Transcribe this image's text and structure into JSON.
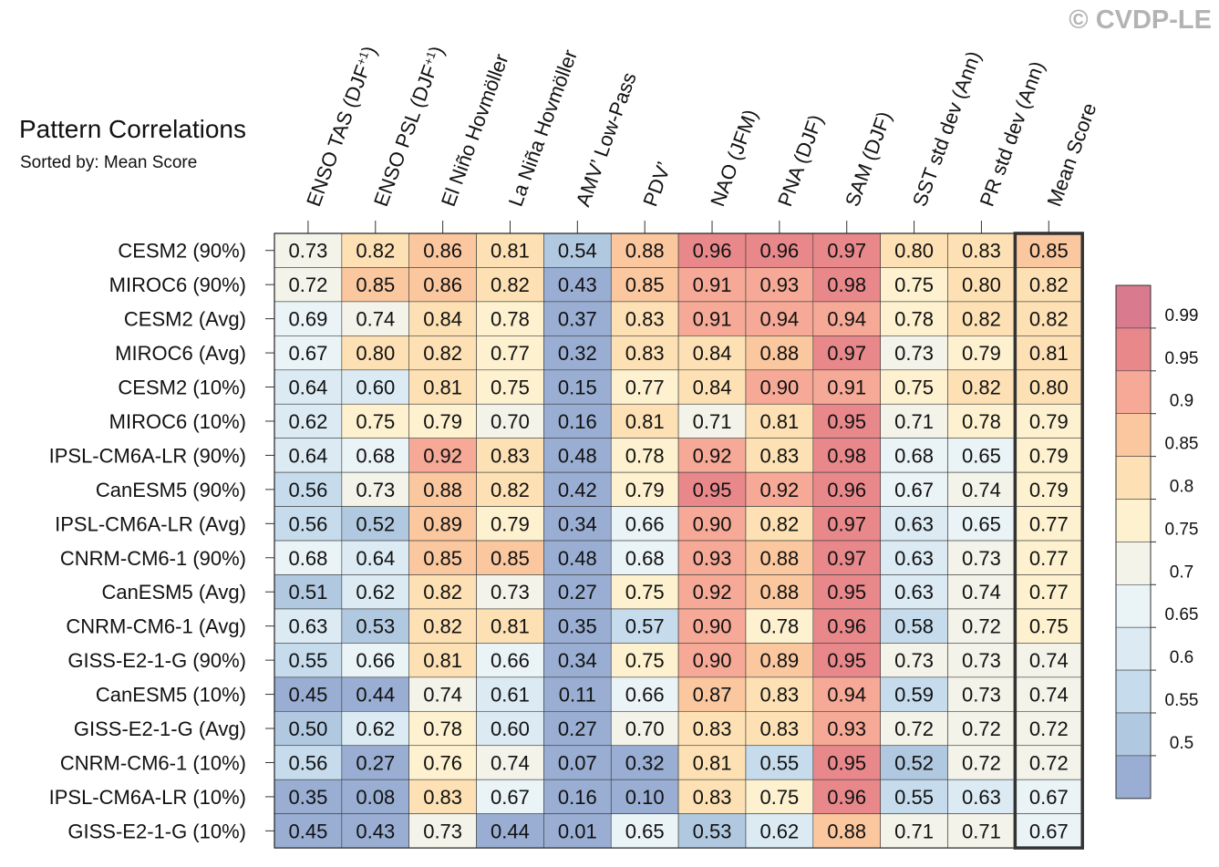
{
  "copyright": "© CVDP-LE",
  "chart_data": {
    "type": "heatmap",
    "title": "Pattern Correlations",
    "subtitle": "Sorted by: Mean Score",
    "columns": [
      "ENSO TAS (DJF+1)",
      "ENSO PSL (DJF+1)",
      "El Niño Hovmöller",
      "La Niña Hovmöller",
      "AMV’ Low-Pass",
      "PDV’",
      "NAO (JFM)",
      "PNA (DJF)",
      "SAM (DJF)",
      "SST std dev (Ann)",
      "PR std dev (Ann)",
      "Mean Score"
    ],
    "highlighted_column": "Mean Score",
    "rows": [
      "CESM2 (90%)",
      "MIROC6 (90%)",
      "CESM2 (Avg)",
      "MIROC6 (Avg)",
      "CESM2 (10%)",
      "MIROC6 (10%)",
      "IPSL-CM6A-LR (90%)",
      "CanESM5 (90%)",
      "IPSL-CM6A-LR (Avg)",
      "CNRM-CM6-1 (90%)",
      "CanESM5 (Avg)",
      "CNRM-CM6-1 (Avg)",
      "GISS-E2-1-G (90%)",
      "CanESM5 (10%)",
      "GISS-E2-1-G (Avg)",
      "CNRM-CM6-1 (10%)",
      "IPSL-CM6A-LR (10%)",
      "GISS-E2-1-G (10%)"
    ],
    "values": [
      [
        "0.73",
        "0.82",
        "0.86",
        "0.81",
        "0.54",
        "0.88",
        "0.96",
        "0.96",
        "0.97",
        "0.80",
        "0.83",
        "0.85"
      ],
      [
        "0.72",
        "0.85",
        "0.86",
        "0.82",
        "0.43",
        "0.85",
        "0.91",
        "0.93",
        "0.98",
        "0.75",
        "0.80",
        "0.82"
      ],
      [
        "0.69",
        "0.74",
        "0.84",
        "0.78",
        "0.37",
        "0.83",
        "0.91",
        "0.94",
        "0.94",
        "0.78",
        "0.82",
        "0.82"
      ],
      [
        "0.67",
        "0.80",
        "0.82",
        "0.77",
        "0.32",
        "0.83",
        "0.84",
        "0.88",
        "0.97",
        "0.73",
        "0.79",
        "0.81"
      ],
      [
        "0.64",
        "0.60",
        "0.81",
        "0.75",
        "0.15",
        "0.77",
        "0.84",
        "0.90",
        "0.91",
        "0.75",
        "0.82",
        "0.80"
      ],
      [
        "0.62",
        "0.75",
        "0.79",
        "0.70",
        "0.16",
        "0.81",
        "0.71",
        "0.81",
        "0.95",
        "0.71",
        "0.78",
        "0.79"
      ],
      [
        "0.64",
        "0.68",
        "0.92",
        "0.83",
        "0.48",
        "0.78",
        "0.92",
        "0.83",
        "0.98",
        "0.68",
        "0.65",
        "0.79"
      ],
      [
        "0.56",
        "0.73",
        "0.88",
        "0.82",
        "0.42",
        "0.79",
        "0.95",
        "0.92",
        "0.96",
        "0.67",
        "0.74",
        "0.79"
      ],
      [
        "0.56",
        "0.52",
        "0.89",
        "0.79",
        "0.34",
        "0.66",
        "0.90",
        "0.82",
        "0.97",
        "0.63",
        "0.65",
        "0.77"
      ],
      [
        "0.68",
        "0.64",
        "0.85",
        "0.85",
        "0.48",
        "0.68",
        "0.93",
        "0.88",
        "0.97",
        "0.63",
        "0.73",
        "0.77"
      ],
      [
        "0.51",
        "0.62",
        "0.82",
        "0.73",
        "0.27",
        "0.75",
        "0.92",
        "0.88",
        "0.95",
        "0.63",
        "0.74",
        "0.77"
      ],
      [
        "0.63",
        "0.53",
        "0.82",
        "0.81",
        "0.35",
        "0.57",
        "0.90",
        "0.78",
        "0.96",
        "0.58",
        "0.72",
        "0.75"
      ],
      [
        "0.55",
        "0.66",
        "0.81",
        "0.66",
        "0.34",
        "0.75",
        "0.90",
        "0.89",
        "0.95",
        "0.73",
        "0.73",
        "0.74"
      ],
      [
        "0.45",
        "0.44",
        "0.74",
        "0.61",
        "0.11",
        "0.66",
        "0.87",
        "0.83",
        "0.94",
        "0.59",
        "0.73",
        "0.74"
      ],
      [
        "0.50",
        "0.62",
        "0.78",
        "0.60",
        "0.27",
        "0.70",
        "0.83",
        "0.83",
        "0.93",
        "0.72",
        "0.72",
        "0.72"
      ],
      [
        "0.56",
        "0.27",
        "0.76",
        "0.74",
        "0.07",
        "0.32",
        "0.81",
        "0.55",
        "0.95",
        "0.52",
        "0.72",
        "0.72"
      ],
      [
        "0.35",
        "0.08",
        "0.83",
        "0.67",
        "0.16",
        "0.10",
        "0.83",
        "0.75",
        "0.96",
        "0.55",
        "0.63",
        "0.67"
      ],
      [
        "0.45",
        "0.43",
        "0.73",
        "0.44",
        "0.01",
        "0.65",
        "0.53",
        "0.62",
        "0.88",
        "0.71",
        "0.71",
        "0.67"
      ]
    ],
    "colorbar": {
      "ticks": [
        "0.99",
        "0.95",
        "0.9",
        "0.85",
        "0.8",
        "0.75",
        "0.7",
        "0.65",
        "0.6",
        "0.55",
        "0.5"
      ],
      "levels": [
        0.5,
        0.55,
        0.6,
        0.65,
        0.7,
        0.75,
        0.8,
        0.85,
        0.9,
        0.95,
        0.99
      ],
      "colors": [
        "#99aed2",
        "#b1c9e0",
        "#c6dced",
        "#dbeaf3",
        "#eaf3f6",
        "#f3f3e9",
        "#fdf1cf",
        "#fde1b4",
        "#fac79f",
        "#f5a996",
        "#e8888b",
        "#d97a8f"
      ]
    }
  }
}
